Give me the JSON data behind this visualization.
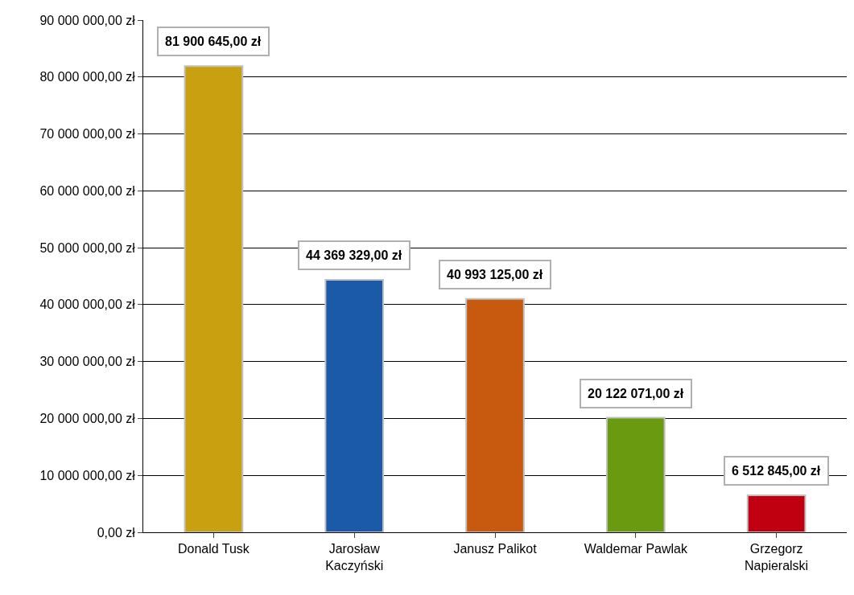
{
  "chart_data": {
    "type": "bar",
    "categories": [
      "Donald Tusk",
      "Jarosław Kaczyński",
      "Janusz Palikot",
      "Waldemar Pawlak",
      "Grzegorz Napieralski"
    ],
    "values": [
      81900645,
      44369329,
      40993125,
      20122071,
      6512845
    ],
    "colors": [
      "#c8a010",
      "#1a5aa8",
      "#c85a10",
      "#6a9a10",
      "#c00010"
    ],
    "value_labels": [
      "81 900 645,00 zł",
      "44 369 329,00 zł",
      "40 993 125,00 zł",
      "20 122 071,00 zł",
      "6 512 845,00 zł"
    ],
    "ylim": [
      0,
      90000000
    ],
    "yticks": [
      {
        "value": 0,
        "label": "0,00 zł"
      },
      {
        "value": 10000000,
        "label": "10 000 000,00 zł"
      },
      {
        "value": 20000000,
        "label": "20 000 000,00 zł"
      },
      {
        "value": 30000000,
        "label": "30 000 000,00 zł"
      },
      {
        "value": 40000000,
        "label": "40 000 000,00 zł"
      },
      {
        "value": 50000000,
        "label": "50 000 000,00 zł"
      },
      {
        "value": 60000000,
        "label": "60 000 000,00 zł"
      },
      {
        "value": 70000000,
        "label": "70 000 000,00 zł"
      },
      {
        "value": 80000000,
        "label": "80 000 000,00 zł"
      },
      {
        "value": 90000000,
        "label": "90 000 000,00 zł"
      }
    ],
    "grid": "y"
  }
}
